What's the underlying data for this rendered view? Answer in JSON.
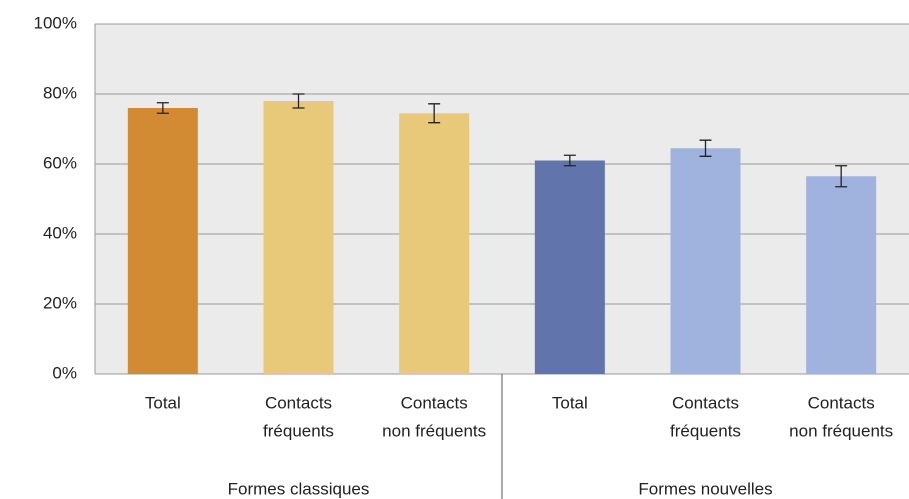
{
  "chart_data": {
    "type": "bar",
    "ylim": [
      0,
      100
    ],
    "yticks": [
      {
        "value": 0,
        "label": "0%"
      },
      {
        "value": 20,
        "label": "20%"
      },
      {
        "value": 40,
        "label": "40%"
      },
      {
        "value": 60,
        "label": "60%"
      },
      {
        "value": 80,
        "label": "80%"
      },
      {
        "value": 100,
        "label": "100%"
      }
    ],
    "grid": true,
    "groups": [
      {
        "label": "Formes classiques",
        "categories": [
          [
            "Total"
          ],
          [
            "Contacts",
            "fréquents"
          ],
          [
            "Contacts",
            "non fréquents"
          ]
        ],
        "values": [
          76,
          78,
          74.5
        ],
        "errors": [
          1.5,
          2,
          2.7
        ],
        "colors": [
          "#d38b33",
          "#e8c97a",
          "#e8c97a"
        ]
      },
      {
        "label": "Formes nouvelles",
        "categories": [
          [
            "Total"
          ],
          [
            "Contacts",
            "fréquents"
          ],
          [
            "Contacts",
            "non fréquents"
          ]
        ],
        "values": [
          61,
          64.5,
          56.5
        ],
        "errors": [
          1.5,
          2.3,
          3
        ],
        "colors": [
          "#6174ab",
          "#a0b3de",
          "#a0b3de"
        ]
      }
    ]
  }
}
